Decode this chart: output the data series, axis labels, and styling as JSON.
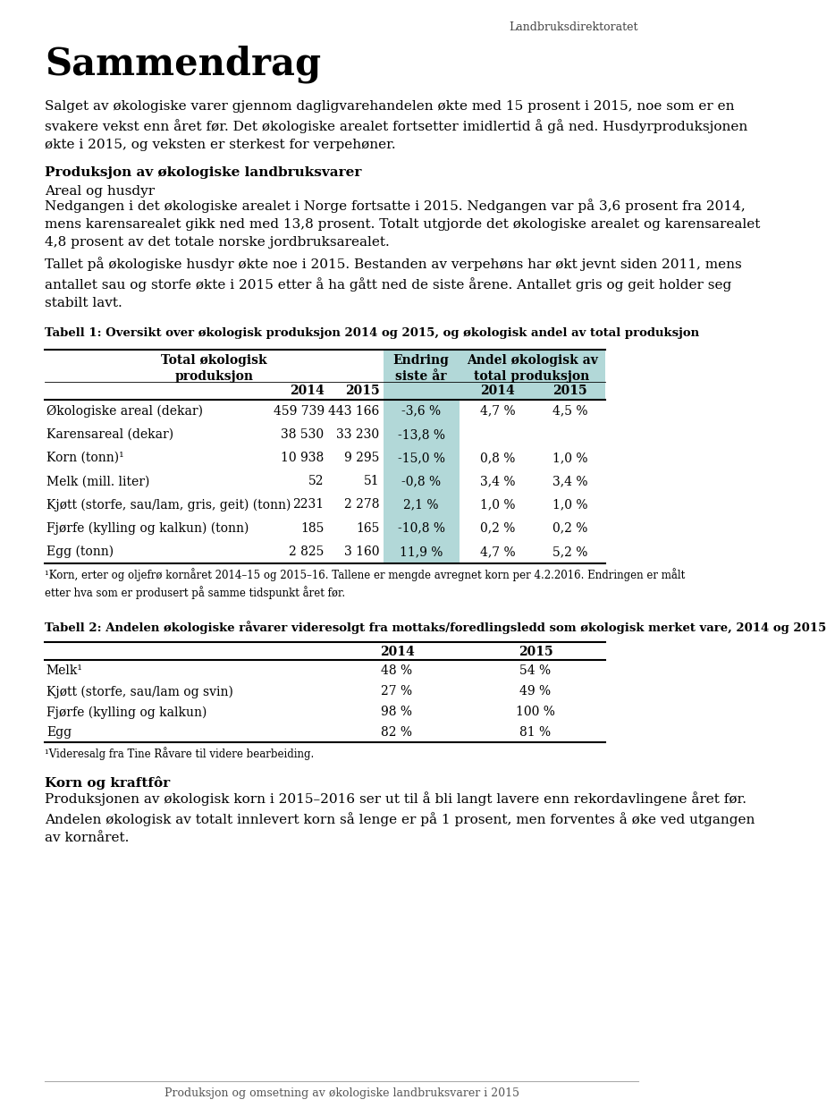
{
  "header_text": "Landbruksdirektoratet",
  "title": "Sammendrag",
  "para1": "Salget av økologiske varer gjennom dagligvarehandelen økte med 15 prosent i 2015, noe som er en\nsvakere vekst enn året før. Det økologiske arealet fortsetter imidlertid å gå ned. Husdyrproduksjonen\nøkte i 2015, og veksten er sterkest for verpehøner.",
  "section1_title": "Produksjon av økologiske landbruksvarer",
  "subsection1": "Areal og husdyr",
  "para2": "Nedgangen i det økologiske arealet i Norge fortsatte i 2015. Nedgangen var på 3,6 prosent fra 2014,\nmens karensarealet gikk ned med 13,8 prosent. Totalt utgjorde det økologiske arealet og karensarealet\n4,8 prosent av det totale norske jordbruksarealet.",
  "para3": "Tallet på økologiske husdyr økte noe i 2015. Bestanden av verpehøns har økt jevnt siden 2011, mens\nantallet sau og storfe økte i 2015 etter å ha gått ned de siste årene. Antallet gris og geit holder seg\nstabilt lavt.",
  "table1_caption": "Tabell 1: Oversikt over økologisk produksjon 2014 og 2015, og økologisk andel av total produksjon",
  "table1_rows": [
    [
      "Økologiske areal (dekar)",
      "459 739",
      "443 166",
      "-3,6 %",
      "4,7 %",
      "4,5 %"
    ],
    [
      "Karensareal (dekar)",
      "38 530",
      "33 230",
      "-13,8 %",
      "",
      ""
    ],
    [
      "Korn (tonn)¹",
      "10 938",
      "9 295",
      "-15,0 %",
      "0,8 %",
      "1,0 %"
    ],
    [
      "Melk (mill. liter)",
      "52",
      "51",
      "-0,8 %",
      "3,4 %",
      "3,4 %"
    ],
    [
      "Kjøtt (storfe, sau/lam, gris, geit) (tonn)",
      "2231",
      "2 278",
      "2,1 %",
      "1,0 %",
      "1,0 %"
    ],
    [
      "Fjørfe (kylling og kalkun) (tonn)",
      "185",
      "165",
      "-10,8 %",
      "0,2 %",
      "0,2 %"
    ],
    [
      "Egg (tonn)",
      "2 825",
      "3 160",
      "11,9 %",
      "4,7 %",
      "5,2 %"
    ]
  ],
  "table1_footnote": "¹Korn, erter og oljefrø kornåret 2014–15 og 2015–16. Tallene er mengde avregnet korn per 4.2.2016. Endringen er målt\netter hva som er produsert på samme tidspunkt året før.",
  "table2_caption": "Tabell 2: Andelen økologiske råvarer videresolgt fra mottaks/foredlingsledd som økologisk merket vare, 2014 og 2015",
  "table2_rows": [
    [
      "Melk¹",
      "48 %",
      "54 %"
    ],
    [
      "Kjøtt (storfe, sau/lam og svin)",
      "27 %",
      "49 %"
    ],
    [
      "Fjørfe (kylling og kalkun)",
      "98 %",
      "100 %"
    ],
    [
      "Egg",
      "82 %",
      "81 %"
    ]
  ],
  "table2_footnote": "¹Videresalg fra Tine Råvare til videre bearbeiding.",
  "section2_title": "Korn og kraftfôr",
  "para4": "Produksjonen av økologisk korn i 2015–2016 ser ut til å bli langt lavere enn rekordavlingene året før.\nAndelen økologisk av totalt innlevert korn så lenge er på 1 prosent, men forventes å øke ved utgangen\nav kornåret.",
  "footer_text": "Produksjon og omsetning av økologiske landbruksvarer i 2015",
  "bg_color": "#ffffff",
  "text_color": "#000000",
  "table_header_bg": "#b2d8d8",
  "table_line_color": "#000000"
}
